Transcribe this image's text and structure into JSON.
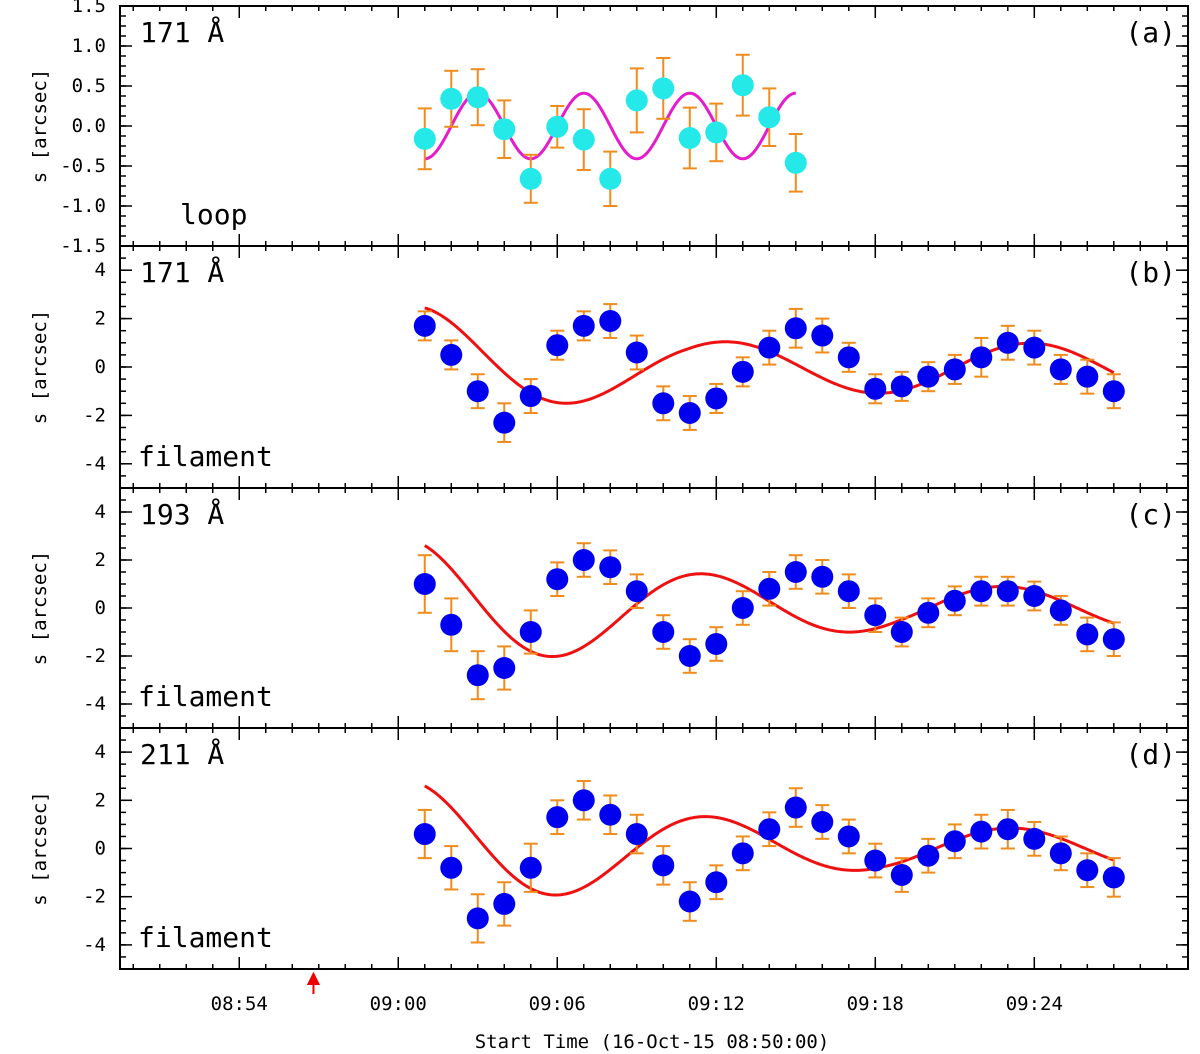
{
  "chart_data": {
    "type": "scatter",
    "x_unit": "minutes after 08:50:00",
    "x_range": [
      -0.5,
      39.8
    ],
    "x_ticks": [
      {
        "label": "08:54",
        "value": 4
      },
      {
        "label": "09:00",
        "value": 10
      },
      {
        "label": "09:06",
        "value": 16
      },
      {
        "label": "09:12",
        "value": 22
      },
      {
        "label": "09:18",
        "value": 28
      },
      {
        "label": "09:24",
        "value": 34
      }
    ],
    "xlabel": "Start Time (16-Oct-15 08:50:00)",
    "marker_arrow_x": 6.8,
    "colors": {
      "fit_a": "#e41ccc",
      "fit_bcd": "#ee1111",
      "point_a": "#25e8e8",
      "point_bcd": "#0000ee",
      "error": "#f08c1e",
      "arrow": "#ee0000"
    },
    "panels": [
      {
        "id": "a",
        "wavelength": "171 Å",
        "tag": "(a)",
        "feature": "loop",
        "ylabel": "s [arcsec]",
        "ylim": [
          -1.5,
          1.5
        ],
        "yticks": [
          {
            "label": "-1.5",
            "value": -1.5
          },
          {
            "label": "-1.0",
            "value": -1.0
          },
          {
            "label": "-0.5",
            "value": -0.5
          },
          {
            "label": "0.0",
            "value": 0.0
          },
          {
            "label": "0.5",
            "value": 0.5
          },
          {
            "label": "1.0",
            "value": 1.0
          },
          {
            "label": "1.5",
            "value": 1.5
          }
        ],
        "x": [
          11,
          12,
          13,
          14,
          15,
          16,
          17,
          18,
          19,
          20,
          21,
          22,
          23,
          24,
          25
        ],
        "y": [
          -0.16,
          0.34,
          0.36,
          -0.04,
          -0.66,
          -0.01,
          -0.17,
          -0.66,
          0.32,
          0.47,
          -0.15,
          -0.08,
          0.51,
          0.11,
          -0.46
        ],
        "err": [
          0.38,
          0.35,
          0.35,
          0.36,
          0.3,
          0.26,
          0.38,
          0.34,
          0.4,
          0.38,
          0.38,
          0.36,
          0.38,
          0.36,
          0.36
        ],
        "fit": {
          "amp": 0.41,
          "period": 4.0,
          "x0": 11,
          "phase": -1.5708,
          "trend": [
            0,
            0,
            0
          ],
          "x_start": 11,
          "x_end": 25
        }
      },
      {
        "id": "b",
        "wavelength": "171 Å",
        "tag": "(b)",
        "feature": "filament",
        "ylabel": "s [arcsec]",
        "ylim": [
          -5,
          5
        ],
        "yticks": [
          {
            "label": "-4",
            "value": -4
          },
          {
            "label": "-2",
            "value": -2
          },
          {
            "label": "0",
            "value": 0
          },
          {
            "label": "2",
            "value": 2
          },
          {
            "label": "4",
            "value": 4
          }
        ],
        "x": [
          11,
          12,
          13,
          14,
          15,
          16,
          17,
          18,
          19,
          20,
          21,
          22,
          23,
          24,
          25,
          26,
          27,
          28,
          29,
          30,
          31,
          32,
          33,
          34,
          35,
          36,
          37
        ],
        "y": [
          1.7,
          0.5,
          -1.0,
          -2.3,
          -1.2,
          0.9,
          1.7,
          1.9,
          0.6,
          -1.5,
          -1.9,
          -1.3,
          -0.2,
          0.8,
          1.6,
          1.3,
          0.4,
          -0.9,
          -0.8,
          -0.4,
          -0.1,
          0.4,
          1.0,
          0.8,
          -0.1,
          -0.4,
          -1.0
        ],
        "err": [
          0.6,
          0.6,
          0.7,
          0.8,
          0.7,
          0.6,
          0.6,
          0.7,
          0.7,
          0.7,
          0.7,
          0.6,
          0.6,
          0.7,
          0.8,
          0.7,
          0.6,
          0.6,
          0.6,
          0.6,
          0.6,
          0.8,
          0.7,
          0.7,
          0.6,
          0.7,
          0.7
        ],
        "fit": {
          "amp": 2.4,
          "decay": 12,
          "period": 11.5,
          "x0": 11,
          "phase": 1.65,
          "trend": [
            0.05,
            -0.005,
            0
          ],
          "x_start": 11,
          "x_end": 37,
          "min_amp": 1.05
        }
      },
      {
        "id": "c",
        "wavelength": "193 Å",
        "tag": "(c)",
        "feature": "filament",
        "ylabel": "s [arcsec]",
        "ylim": [
          -5,
          5
        ],
        "yticks": [
          {
            "label": "-4",
            "value": -4
          },
          {
            "label": "-2",
            "value": -2
          },
          {
            "label": "0",
            "value": 0
          },
          {
            "label": "2",
            "value": 2
          },
          {
            "label": "4",
            "value": 4
          }
        ],
        "x": [
          11,
          12,
          13,
          14,
          15,
          16,
          17,
          18,
          19,
          20,
          21,
          22,
          23,
          24,
          25,
          26,
          27,
          28,
          29,
          30,
          31,
          32,
          33,
          34,
          35,
          36,
          37
        ],
        "y": [
          1.0,
          -0.7,
          -2.8,
          -2.5,
          -1.0,
          1.2,
          2.0,
          1.7,
          0.7,
          -1.0,
          -2.0,
          -1.5,
          0.0,
          0.8,
          1.5,
          1.3,
          0.7,
          -0.3,
          -1.0,
          -0.2,
          0.3,
          0.7,
          0.7,
          0.5,
          -0.1,
          -1.1,
          -1.3
        ],
        "err": [
          1.2,
          1.1,
          1.0,
          0.9,
          0.9,
          0.7,
          0.7,
          0.7,
          0.7,
          0.7,
          0.7,
          0.7,
          0.7,
          0.7,
          0.7,
          0.7,
          0.7,
          0.7,
          0.6,
          0.6,
          0.6,
          0.6,
          0.6,
          0.6,
          0.6,
          0.7,
          0.7
        ],
        "fit": {
          "amp": 2.75,
          "decay": 16,
          "period": 11.2,
          "x0": 11,
          "phase": 1.9,
          "trend": [
            0.0,
            0.0,
            0
          ],
          "x_start": 11,
          "x_end": 37,
          "min_amp": 0.9
        }
      },
      {
        "id": "d",
        "wavelength": "211 Å",
        "tag": "(d)",
        "feature": "filament",
        "ylabel": "s [arcsec]",
        "ylim": [
          -5,
          5
        ],
        "yticks": [
          {
            "label": "-4",
            "value": -4
          },
          {
            "label": "-2",
            "value": -2
          },
          {
            "label": "0",
            "value": 0
          },
          {
            "label": "2",
            "value": 2
          },
          {
            "label": "4",
            "value": 4
          }
        ],
        "x": [
          11,
          12,
          13,
          14,
          15,
          16,
          17,
          18,
          19,
          20,
          21,
          22,
          23,
          24,
          25,
          26,
          27,
          28,
          29,
          30,
          31,
          32,
          33,
          34,
          35,
          36,
          37
        ],
        "y": [
          0.6,
          -0.8,
          -2.9,
          -2.3,
          -0.8,
          1.3,
          2.0,
          1.4,
          0.6,
          -0.7,
          -2.2,
          -1.4,
          -0.2,
          0.8,
          1.7,
          1.1,
          0.5,
          -0.5,
          -1.1,
          -0.3,
          0.3,
          0.7,
          0.8,
          0.4,
          -0.2,
          -0.9,
          -1.2
        ],
        "err": [
          1.0,
          0.9,
          1.0,
          0.9,
          1.0,
          0.7,
          0.8,
          0.8,
          0.8,
          0.8,
          0.8,
          0.7,
          0.7,
          0.7,
          0.8,
          0.7,
          0.7,
          0.7,
          0.7,
          0.7,
          0.7,
          0.7,
          0.8,
          0.7,
          0.7,
          0.7,
          0.8
        ],
        "fit": {
          "amp": 2.7,
          "decay": 15,
          "period": 11.3,
          "x0": 11,
          "phase": 1.85,
          "trend": [
            0.0,
            0.0,
            0
          ],
          "x_start": 11,
          "x_end": 37,
          "min_amp": 0.85
        }
      }
    ]
  }
}
